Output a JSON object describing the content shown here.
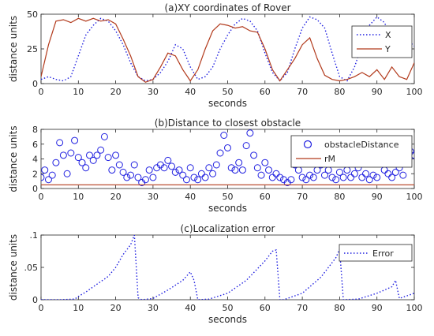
{
  "colors": {
    "blue": "#1f1fe0",
    "red": "#b23a1c",
    "axis": "#262626"
  },
  "chart_data": [
    {
      "type": "line",
      "title": "(a)XY coordinates of Rover",
      "xlabel": "seconds",
      "ylabel": "distance units",
      "xlim": [
        0,
        100
      ],
      "ylim": [
        0,
        50
      ],
      "xticks": [
        0,
        10,
        20,
        30,
        40,
        50,
        60,
        70,
        80,
        90,
        100
      ],
      "yticks": [
        0,
        25,
        50
      ],
      "legend": "top-right",
      "series": [
        {
          "name": "X",
          "style": "dotted",
          "color": "#1f1fe0",
          "x": [
            0,
            2,
            4,
            6,
            8,
            10,
            12,
            14,
            16,
            18,
            20,
            22,
            24,
            26,
            28,
            30,
            32,
            34,
            36,
            38,
            40,
            42,
            44,
            46,
            48,
            50,
            52,
            54,
            56,
            58,
            60,
            62,
            64,
            66,
            68,
            70,
            72,
            74,
            76,
            78,
            80,
            82,
            84,
            86,
            88,
            90,
            92,
            94,
            96,
            98,
            100
          ],
          "y": [
            3,
            5,
            3,
            2,
            5,
            20,
            35,
            42,
            47,
            45,
            38,
            28,
            15,
            5,
            2,
            3,
            8,
            16,
            28,
            25,
            12,
            3,
            5,
            12,
            25,
            35,
            43,
            47,
            45,
            38,
            22,
            8,
            2,
            8,
            25,
            40,
            48,
            46,
            40,
            22,
            5,
            2,
            12,
            28,
            42,
            48,
            44,
            32,
            20,
            32,
            27
          ]
        },
        {
          "name": "Y",
          "style": "solid",
          "color": "#b23a1c",
          "x": [
            0,
            2,
            4,
            6,
            8,
            10,
            12,
            14,
            16,
            18,
            20,
            22,
            24,
            26,
            28,
            30,
            32,
            34,
            36,
            38,
            40,
            42,
            44,
            46,
            48,
            50,
            52,
            54,
            56,
            58,
            60,
            62,
            64,
            66,
            68,
            70,
            72,
            74,
            76,
            78,
            80,
            82,
            84,
            86,
            88,
            90,
            92,
            94,
            96,
            98,
            100
          ],
          "y": [
            5,
            28,
            45,
            46,
            44,
            47,
            45,
            47,
            45,
            46,
            43,
            32,
            20,
            5,
            1,
            3,
            12,
            22,
            20,
            10,
            2,
            10,
            25,
            38,
            43,
            42,
            40,
            41,
            38,
            37,
            25,
            10,
            2,
            10,
            18,
            28,
            33,
            18,
            6,
            3,
            2,
            3,
            5,
            8,
            5,
            10,
            3,
            12,
            5,
            3,
            15
          ]
        }
      ]
    },
    {
      "type": "scatter",
      "title": "(b)Distance to closest obstacle",
      "xlabel": "seconds",
      "ylabel": "distance units",
      "xlim": [
        0,
        100
      ],
      "ylim": [
        0,
        8
      ],
      "xticks": [
        0,
        10,
        20,
        30,
        40,
        50,
        60,
        70,
        80,
        90,
        100
      ],
      "yticks": [
        0,
        2,
        4,
        6,
        8
      ],
      "legend": "top-right",
      "series": [
        {
          "name": "obstacleDistance",
          "style": "circle",
          "color": "#1f1fe0",
          "x": [
            0,
            1,
            2,
            3,
            4,
            5,
            6,
            7,
            8,
            9,
            10,
            11,
            12,
            13,
            14,
            15,
            16,
            17,
            18,
            19,
            20,
            21,
            22,
            23,
            24,
            25,
            26,
            27,
            28,
            29,
            30,
            31,
            32,
            33,
            34,
            35,
            36,
            37,
            38,
            39,
            40,
            41,
            42,
            43,
            44,
            45,
            46,
            47,
            48,
            49,
            50,
            51,
            52,
            53,
            54,
            55,
            56,
            57,
            58,
            59,
            60,
            61,
            62,
            63,
            64,
            65,
            66,
            67,
            68,
            69,
            70,
            71,
            72,
            73,
            74,
            75,
            76,
            77,
            78,
            79,
            80,
            81,
            82,
            83,
            84,
            85,
            86,
            87,
            88,
            89,
            90,
            91,
            92,
            93,
            94,
            95,
            96,
            97,
            98,
            99,
            100
          ],
          "y": [
            1.5,
            2.5,
            1.2,
            1.8,
            3.5,
            6.2,
            4.5,
            2,
            4.8,
            6.5,
            4.2,
            3.5,
            2.8,
            4.5,
            3.8,
            4.5,
            5.2,
            7,
            4.2,
            2.5,
            4.5,
            3.2,
            2.2,
            1.5,
            1.8,
            3.2,
            1.5,
            0.8,
            1.2,
            2.5,
            1.5,
            2.8,
            3.2,
            2.8,
            3.8,
            3,
            2.2,
            2.5,
            1.8,
            1.2,
            2.8,
            1.5,
            1.2,
            2,
            1.5,
            2.8,
            2,
            3.2,
            4.8,
            7.2,
            5.5,
            2.8,
            2.5,
            3.5,
            2.5,
            5.8,
            7.5,
            4.5,
            2.8,
            1.8,
            3.5,
            2.5,
            1.5,
            2,
            1.5,
            1.2,
            0.8,
            1.2,
            3.2,
            2.5,
            1.5,
            1.2,
            1.8,
            1.5,
            2.5,
            3.2,
            1.8,
            2.5,
            1.5,
            1.2,
            2.2,
            1.5,
            2.5,
            1.5,
            2,
            2.8,
            1.5,
            2,
            1.2,
            1.8,
            1.5,
            3.5,
            2.5,
            2,
            1.5,
            2.2,
            2.8,
            1.8,
            3.5,
            5,
            4.5
          ]
        },
        {
          "name": "rM",
          "style": "solid",
          "color": "#b23a1c",
          "x": [
            0,
            100
          ],
          "y": [
            0.5,
            0.5
          ]
        }
      ]
    },
    {
      "type": "line",
      "title": "(c)Localization error",
      "xlabel": "seconds",
      "ylabel": "distance units",
      "xlim": [
        0,
        100
      ],
      "ylim": [
        0,
        0.1
      ],
      "xticks": [
        0,
        10,
        20,
        30,
        40,
        50,
        60,
        70,
        80,
        90,
        100
      ],
      "yticks": [
        0,
        0.05,
        0.1
      ],
      "legend": "top-right",
      "series": [
        {
          "name": "Error",
          "style": "dotted",
          "color": "#1f1fe0",
          "x": [
            0,
            5,
            9,
            10,
            12,
            14,
            16,
            18,
            20,
            22,
            24,
            25,
            26,
            27,
            30,
            34,
            38,
            40,
            41,
            42,
            45,
            50,
            55,
            60,
            62,
            63,
            64,
            65,
            70,
            75,
            79,
            80,
            81,
            85,
            90,
            92,
            94,
            95,
            96,
            100
          ],
          "y": [
            0,
            0,
            0.001,
            0.005,
            0.012,
            0.02,
            0.028,
            0.036,
            0.05,
            0.07,
            0.085,
            0.1,
            0.003,
            0,
            0.002,
            0.015,
            0.03,
            0.043,
            0.03,
            0,
            0.001,
            0.01,
            0.03,
            0.06,
            0.075,
            0.077,
            0,
            0,
            0.01,
            0.035,
            0.065,
            0.078,
            0,
            0.001,
            0.01,
            0.015,
            0.02,
            0.03,
            0.002,
            0.01
          ]
        }
      ]
    }
  ]
}
